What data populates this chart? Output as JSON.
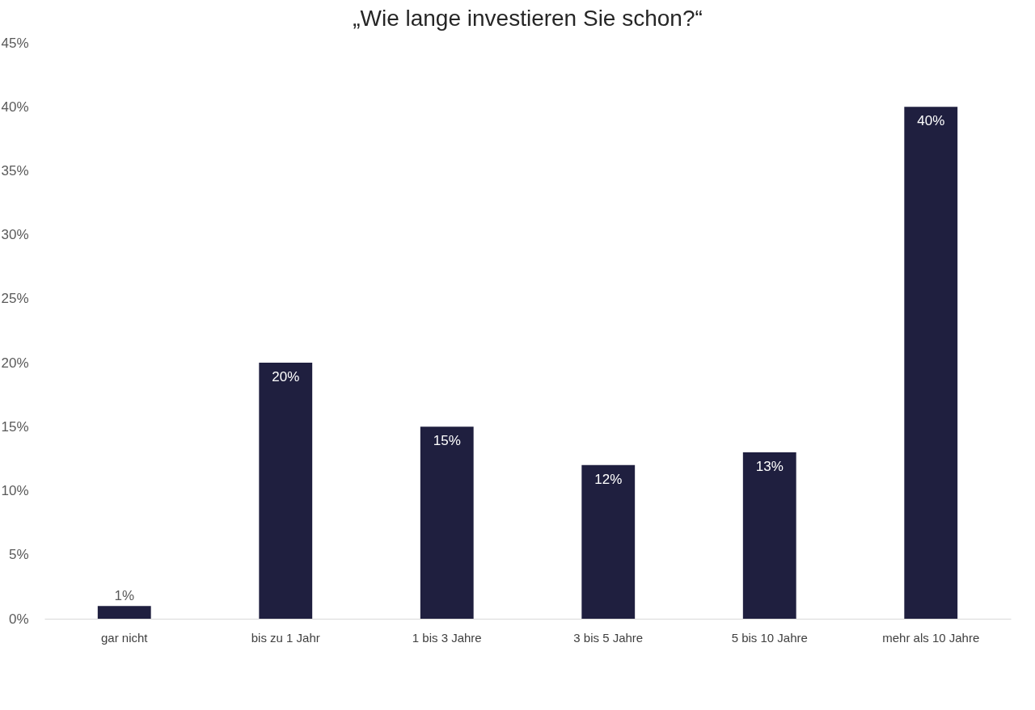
{
  "chart_data": {
    "type": "bar",
    "title": "„Wie lange investieren Sie schon?“",
    "categories": [
      "gar nicht",
      "bis zu 1 Jahr",
      "1 bis 3 Jahre",
      "3 bis 5 Jahre",
      "5 bis 10 Jahre",
      "mehr als 10 Jahre"
    ],
    "values": [
      1,
      20,
      15,
      12,
      13,
      40
    ],
    "value_labels": [
      "1%",
      "20%",
      "15%",
      "12%",
      "13%",
      "40%"
    ],
    "color": "#1f1f3f",
    "ylim": [
      0,
      45
    ],
    "yticks": [
      {
        "value": 0,
        "label": "0%"
      },
      {
        "value": 5,
        "label": "5%"
      },
      {
        "value": 10,
        "label": "10%"
      },
      {
        "value": 15,
        "label": "15%"
      },
      {
        "value": 20,
        "label": "20%"
      },
      {
        "value": 25,
        "label": "25%"
      },
      {
        "value": 30,
        "label": "30%"
      },
      {
        "value": 35,
        "label": "35%"
      },
      {
        "value": 40,
        "label": "40%"
      },
      {
        "value": 45,
        "label": "45%"
      }
    ],
    "grid": false
  }
}
